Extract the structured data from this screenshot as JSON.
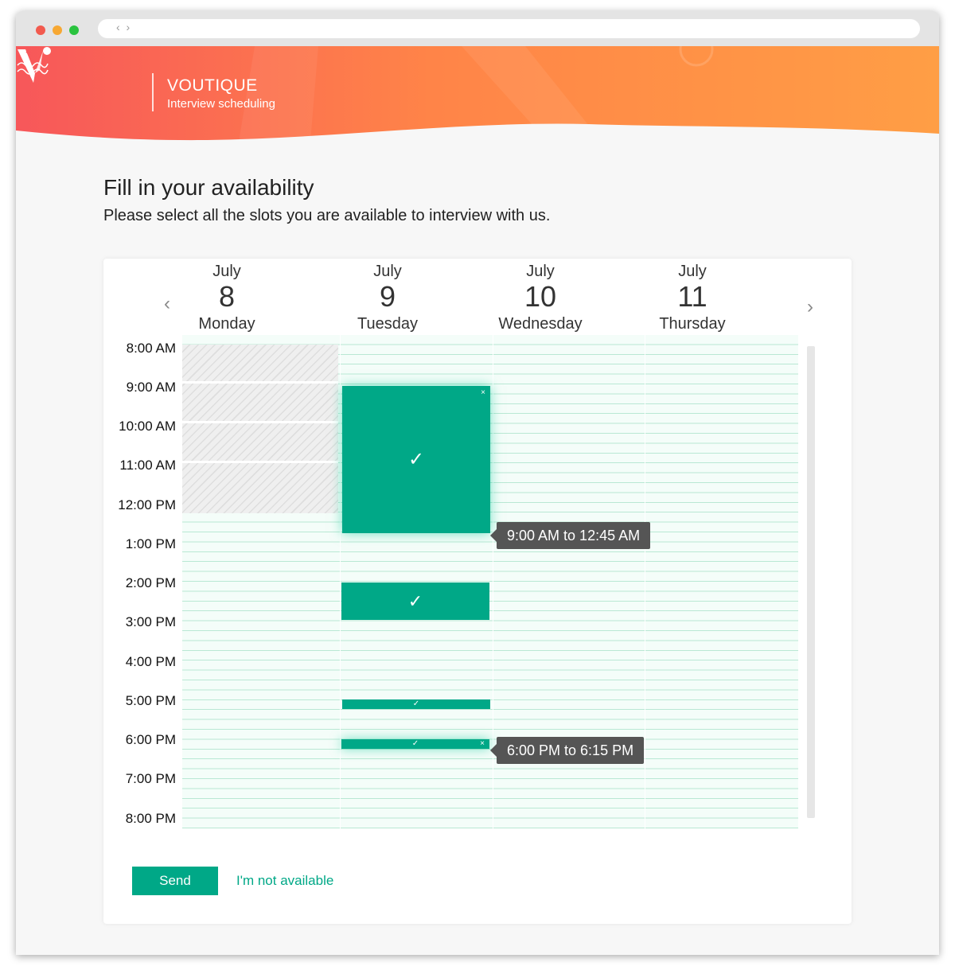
{
  "browser": {
    "nav_arrows": "‹ ›"
  },
  "header": {
    "brand_name": "VOUTIQUE",
    "brand_subtitle": "Interview scheduling",
    "gradient_start": "#f7575a",
    "gradient_end": "#ff9e45"
  },
  "page": {
    "title": "Fill in your availability",
    "description": "Please select all the slots you are available to interview with us."
  },
  "calendar": {
    "prev_icon": "‹",
    "next_icon": "›",
    "days": [
      {
        "month": "July",
        "day": "8",
        "weekday": "Monday"
      },
      {
        "month": "July",
        "day": "9",
        "weekday": "Tuesday"
      },
      {
        "month": "July",
        "day": "10",
        "weekday": "Wednesday"
      },
      {
        "month": "July",
        "day": "11",
        "weekday": "Thursday"
      }
    ],
    "times": [
      "8:00 AM",
      "9:00 AM",
      "10:00 AM",
      "11:00 AM",
      "12:00 PM",
      "1:00 PM",
      "2:00 PM",
      "3:00 PM",
      "4:00 PM",
      "5:00  PM",
      "6:00  PM",
      "7:00 PM",
      "8:00  PM"
    ],
    "unavailable_note": "Monday 8:00 AM – 11:59 AM unavailable",
    "slot_check": "✓",
    "slot_close": "×",
    "selected_color": "#00a887",
    "tooltip_1": "9:00 AM to 12:45 AM",
    "tooltip_2": "6:00 PM to 6:15 PM"
  },
  "actions": {
    "send_label": "Send",
    "not_available_label": "I'm not available"
  }
}
